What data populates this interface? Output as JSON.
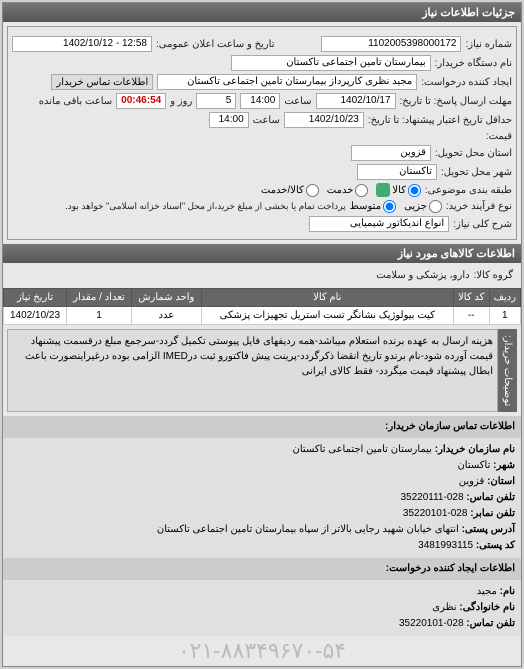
{
  "panel_title": "جزئیات اطلاعات نیاز",
  "fields": {
    "request_no_label": "شماره نیاز:",
    "request_no": "1102005398000172",
    "announce_label": "تاریخ و ساعت اعلان عمومی:",
    "announce_value": "12:58 - 1402/10/12",
    "buyer_org_label": "نام دستگاه خریدار:",
    "buyer_org": "بیمارستان تامین اجتماعی تاکستان",
    "requester_label": "ایجاد کننده درخواست:",
    "requester": "مجید نظری کارپرداز بیمارستان تامین اجتماعی تاکستان",
    "contact_btn": "اطلاعات تماس خریدار",
    "deadline_label": "مهلت ارسال پاسخ: تا تاریخ:",
    "deadline_date": "1402/10/17",
    "time_label": "ساعت",
    "deadline_time": "14:00",
    "days_remaining": "5",
    "days_remaining_suffix": "روز و",
    "timer": "00:46:54",
    "timer_suffix": "ساعت باقی مانده",
    "validity_label": "حداقل تاریخ اعتبار پیشنهاد: تا تاریخ:",
    "validity_date": "1402/10/23",
    "validity_time": "14:00",
    "price_label": "قیمت:",
    "delivery_province_label": "استان محل تحویل:",
    "delivery_province": "قزوین",
    "delivery_city_label": "شهر محل تحویل:",
    "delivery_city": "تاکستان",
    "category_label": "طبقه بندی موضوعی:",
    "cat_goods": "کالا",
    "cat_service": "خدمت",
    "cat_goods_service": "کالا/خدمت",
    "process_label": "نوع فرآیند خرید:",
    "proc_small": "جزیی",
    "proc_medium": "متوسط",
    "proc_note": "پرداخت تمام یا بخشی از مبلغ خرید،از محل \"اسناد خزانه اسلامی\" خواهد بود.",
    "general_desc_label": "شرح کلی نیاز:",
    "general_desc": "انواع اندیکاتور شیمیایی"
  },
  "goods_section_title": "اطلاعات کالاهای مورد نیاز",
  "goods_group_label": "گروه کالا:",
  "goods_group": "دارو، پزشکی و سلامت",
  "table": {
    "headers": [
      "ردیف",
      "کد کالا",
      "نام کالا",
      "واحد شمارش",
      "تعداد / مقدار",
      "تاریخ نیاز"
    ],
    "rows": [
      [
        "1",
        "--",
        "کیت بیولوژیک نشانگر تست استریل تجهیزات پزشکی",
        "عدد",
        "1",
        "1402/10/23"
      ]
    ]
  },
  "buyer_notes_label": "توضیحات خریدار:",
  "buyer_notes": "هزینه ارسال به عهده برنده استعلام میباشد-همه ردیفهای فایل پیوستی تکمیل گردد-سرجمع مبلغ درقسمت پیشنهاد قیمت آورده شود-نام برندو تاریخ انقضا ذکرگردد-پرینت پیش فاکتورو ثبت درIMED الزامی بوده درغیراینصورت باعث ابطال پیشنهاد قیمت میگردد- فقط کالای ایرانی",
  "contact_section": {
    "title": "اطلاعات تماس سازمان خریدار:",
    "org_label": "نام سازمان خریدار:",
    "org": "بیمارستان تامین اجتماعی تاکستان",
    "city_label": "شهر:",
    "city": "تاکستان",
    "province_label": "استان:",
    "province": "قزوین",
    "phone_label": "تلفن تماس:",
    "phone": "028-35220111",
    "fax_label": "تلفن نمابر:",
    "fax": "028-35220101",
    "address_label": "آدرس پستی:",
    "address": "انتهای خیابان شهید رجایی بالاتر از سپاه بیمارستان تامین اجتماعی تاکستان",
    "postal_label": "کد پستی:",
    "postal": "3481993115",
    "creator_title": "اطلاعات ایجاد کننده درخواست:",
    "name_label": "نام:",
    "name": "مجید",
    "surname_label": "نام خانوادگی:",
    "surname": "نظری",
    "creator_phone_label": "تلفن تماس:",
    "creator_phone": "028-35220101"
  },
  "footer_phone": "۰۲۱-۸۸۳۴۹۶۷۰-۵۴"
}
